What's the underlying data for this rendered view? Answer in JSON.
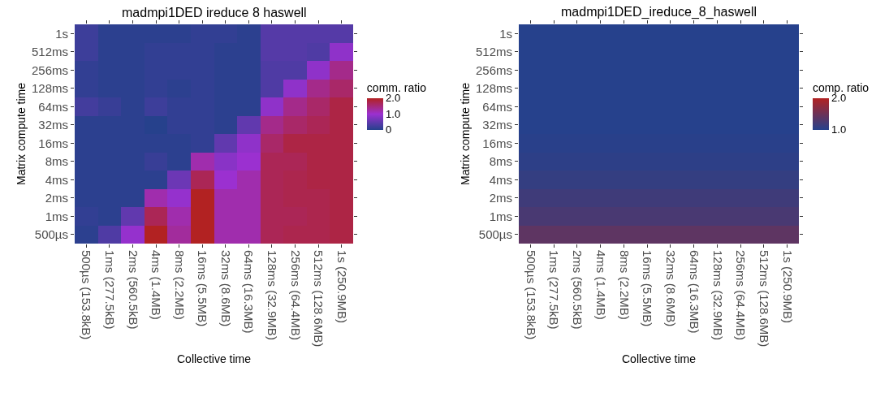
{
  "chart_data": [
    {
      "type": "heatmap",
      "title": "madmpi1DED ireduce 8 haswell",
      "xlabel": "Collective time",
      "ylabel": "Matrix compute time",
      "clabel": "comm. ratio",
      "categories": [
        "500µs (153.8kB)",
        "1ms (277.5kB)",
        "2ms (560.5kB)",
        "4ms (1.4MB)",
        "8ms (2.2MB)",
        "16ms (5.5MB)",
        "32ms (8.6MB)",
        "64ms (16.3MB)",
        "128ms (32.9MB)",
        "256ms (64.4MB)",
        "512ms (128.6MB)",
        "1s (250.9MB)"
      ],
      "y_categories": [
        "1s",
        "512ms",
        "256ms",
        "128ms",
        "64ms",
        "32ms",
        "16ms",
        "8ms",
        "4ms",
        "2ms",
        "1ms",
        "500µs"
      ],
      "cells": [
        [
          0.2,
          0.05,
          0.05,
          0.05,
          0.05,
          0.1,
          0.1,
          0.05,
          0.4,
          0.4,
          0.4,
          0.4
        ],
        [
          0.2,
          0.05,
          0.05,
          0.1,
          0.1,
          0.1,
          0.05,
          0.05,
          0.4,
          0.4,
          0.35,
          0.9
        ],
        [
          0.1,
          0.05,
          0.05,
          0.1,
          0.1,
          0.1,
          0.05,
          0.05,
          0.35,
          0.35,
          0.9,
          1.4
        ],
        [
          0.1,
          0.05,
          0.05,
          0.1,
          0.05,
          0.1,
          0.05,
          0.05,
          0.35,
          0.9,
          1.4,
          1.6
        ],
        [
          0.25,
          0.15,
          0.05,
          0.2,
          0.1,
          0.1,
          0.05,
          0.05,
          0.9,
          1.4,
          1.6,
          1.8
        ],
        [
          0.05,
          0.05,
          0.05,
          0,
          0.1,
          0.1,
          0.05,
          0.5,
          1.4,
          1.6,
          1.7,
          1.8
        ],
        [
          0.05,
          0.05,
          0.05,
          0.05,
          0.05,
          0.1,
          0.5,
          0.9,
          1.6,
          1.8,
          1.8,
          1.8
        ],
        [
          0.05,
          0.05,
          0.05,
          0.15,
          0.05,
          1.2,
          0.85,
          1,
          1.7,
          1.7,
          1.8,
          1.8
        ],
        [
          0.05,
          0.05,
          0.05,
          0.05,
          0.6,
          1.7,
          1,
          1.2,
          1.7,
          1.75,
          1.8,
          1.8
        ],
        [
          0.05,
          0.05,
          0.05,
          1.2,
          0.95,
          2,
          1.2,
          1.2,
          1.7,
          1.75,
          1.75,
          1.8
        ],
        [
          0.1,
          0.05,
          0.5,
          1.7,
          1.2,
          2,
          1.2,
          1.2,
          1.7,
          1.7,
          1.75,
          1.8
        ],
        [
          0.05,
          0.35,
          0.95,
          2,
          1.3,
          2,
          1.2,
          1.2,
          1.7,
          1.75,
          1.75,
          1.8
        ]
      ],
      "clim": [
        0,
        2
      ],
      "cticks": [
        {
          "value": 0,
          "label": "0"
        },
        {
          "value": 1,
          "label": "1.0"
        },
        {
          "value": 2,
          "label": "2.0"
        }
      ],
      "colors": [
        "#26418c",
        "#9b30d0",
        "#b22222"
      ]
    },
    {
      "type": "heatmap",
      "title": "madmpi1DED_ireduce_8_haswell",
      "xlabel": "Collective time",
      "ylabel": "Matrix compute time",
      "clabel": "comp. ratio",
      "categories": [
        "500µs (153.8kB)",
        "1ms (277.5kB)",
        "2ms (560.5kB)",
        "4ms (1.4MB)",
        "8ms (2.2MB)",
        "16ms (5.5MB)",
        "32ms (8.6MB)",
        "64ms (16.3MB)",
        "128ms (32.9MB)",
        "256ms (64.4MB)",
        "512ms (128.6MB)",
        "1s (250.9MB)"
      ],
      "y_categories": [
        "1s",
        "512ms",
        "256ms",
        "128ms",
        "64ms",
        "32ms",
        "16ms",
        "8ms",
        "4ms",
        "2ms",
        "1ms",
        "500µs"
      ],
      "cells": [
        [
          1,
          1,
          1,
          1,
          1,
          1,
          1,
          1,
          1,
          1,
          1,
          1
        ],
        [
          1,
          1,
          1,
          1,
          1,
          1,
          1,
          1,
          1,
          1,
          1,
          1
        ],
        [
          1,
          1,
          1,
          1,
          1,
          1,
          1,
          1,
          1,
          1,
          1,
          1
        ],
        [
          1,
          1,
          1,
          1,
          1,
          1,
          1,
          1,
          1,
          1,
          1,
          1
        ],
        [
          1,
          1,
          1,
          1,
          1,
          1,
          1,
          1,
          1,
          1,
          1,
          1
        ],
        [
          1,
          1,
          1,
          1,
          1,
          1,
          1,
          1,
          1,
          1,
          1,
          1
        ],
        [
          1.02,
          1.02,
          1.02,
          1.02,
          1.02,
          1.02,
          1.02,
          1.02,
          1.02,
          1.02,
          1.02,
          1.02
        ],
        [
          1.05,
          1.05,
          1.05,
          1.05,
          1.05,
          1.05,
          1.05,
          1.05,
          1.05,
          1.05,
          1.05,
          1.05
        ],
        [
          1.1,
          1.1,
          1.1,
          1.1,
          1.1,
          1.1,
          1.1,
          1.1,
          1.1,
          1.1,
          1.1,
          1.1
        ],
        [
          1.18,
          1.18,
          1.18,
          1.18,
          1.18,
          1.18,
          1.18,
          1.18,
          1.18,
          1.18,
          1.18,
          1.18
        ],
        [
          1.25,
          1.25,
          1.25,
          1.25,
          1.25,
          1.25,
          1.25,
          1.25,
          1.25,
          1.25,
          1.25,
          1.25
        ],
        [
          1.4,
          1.4,
          1.4,
          1.4,
          1.4,
          1.4,
          1.4,
          1.4,
          1.4,
          1.4,
          1.4,
          1.4
        ]
      ],
      "clim": [
        1,
        2
      ],
      "cticks": [
        {
          "value": 1,
          "label": "1.0"
        },
        {
          "value": 2,
          "label": "2.0"
        }
      ],
      "colors": [
        "#26418c",
        "#b22222"
      ]
    }
  ]
}
